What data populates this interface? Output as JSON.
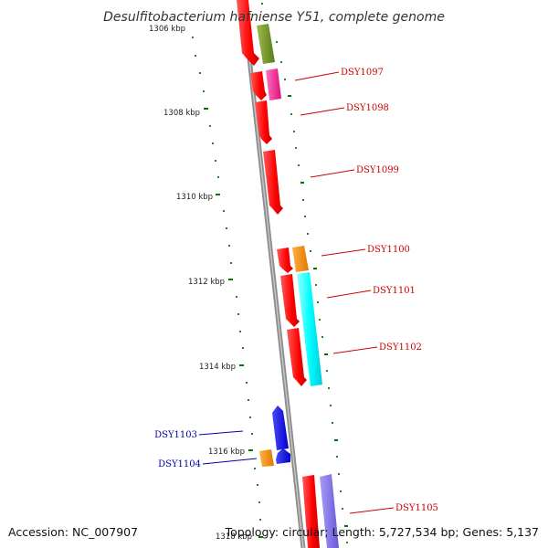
{
  "title": "Desulfitobacterium hafniense Y51, complete genome",
  "accession": "Accession: NC_007907",
  "topology": "Topology: circular; Length: 5,727,534 bp; Genes: 5,137",
  "colors": {
    "red": "#ff0000",
    "olive": "#6b8e23",
    "pink": "#ff1493",
    "orange": "#ff8c00",
    "cyan": "#00ffff",
    "blue": "#0000ff",
    "slate": "#7b68ee",
    "label_red": "#cc0000",
    "label_blue": "#0000aa",
    "tick_green": "#007700",
    "axis_gray": "#8c8c8c"
  },
  "kbp_ticks": [
    "1306 kbp",
    "1308 kbp",
    "1310 kbp",
    "1312 kbp",
    "1314 kbp",
    "1316 kbp",
    "1318 kbp"
  ],
  "gene_labels": [
    {
      "text": "DSY1097",
      "color": "label_red"
    },
    {
      "text": "DSY1098",
      "color": "label_red"
    },
    {
      "text": "DSY1099",
      "color": "label_red"
    },
    {
      "text": "DSY1100",
      "color": "label_red"
    },
    {
      "text": "DSY1101",
      "color": "label_red"
    },
    {
      "text": "DSY1102",
      "color": "label_red"
    },
    {
      "text": "DSY1103",
      "color": "label_blue"
    },
    {
      "text": "DSY1104",
      "color": "label_blue"
    },
    {
      "text": "DSY1105",
      "color": "label_red"
    }
  ]
}
